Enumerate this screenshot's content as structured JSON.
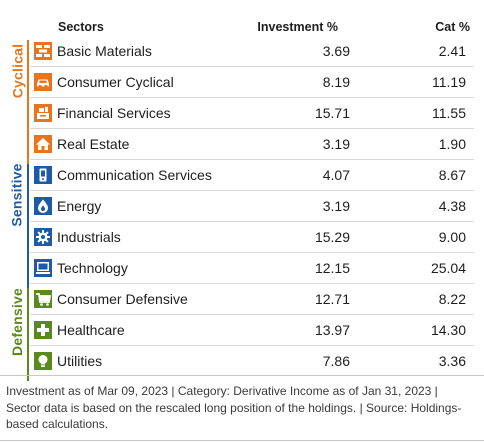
{
  "header": {
    "sectors": "Sectors",
    "investment": "Investment  %",
    "category": "Cat  %"
  },
  "groups": [
    {
      "label": "Cyclical",
      "color": "#e8741c"
    },
    {
      "label": "Sensitive",
      "color": "#1f5aa8"
    },
    {
      "label": "Defensive",
      "color": "#5a8a1e"
    }
  ],
  "rows": [
    {
      "name": "Basic Materials",
      "investment": "3.69",
      "category": "2.41",
      "icon": "bricks-icon",
      "color": "#e8741c"
    },
    {
      "name": "Consumer Cyclical",
      "investment": "8.19",
      "category": "11.19",
      "icon": "car-icon",
      "color": "#e8741c"
    },
    {
      "name": "Financial Services",
      "investment": "15.71",
      "category": "11.55",
      "icon": "cash-register-icon",
      "color": "#e8741c"
    },
    {
      "name": "Real Estate",
      "investment": "3.19",
      "category": "1.90",
      "icon": "house-icon",
      "color": "#e8741c"
    },
    {
      "name": "Communication Services",
      "investment": "4.07",
      "category": "8.67",
      "icon": "phone-icon",
      "color": "#1f5aa8"
    },
    {
      "name": "Energy",
      "investment": "3.19",
      "category": "4.38",
      "icon": "flame-icon",
      "color": "#1f5aa8"
    },
    {
      "name": "Industrials",
      "investment": "15.29",
      "category": "9.00",
      "icon": "gear-icon",
      "color": "#1f5aa8"
    },
    {
      "name": "Technology",
      "investment": "12.15",
      "category": "25.04",
      "icon": "monitor-icon",
      "color": "#1f5aa8"
    },
    {
      "name": "Consumer Defensive",
      "investment": "12.71",
      "category": "8.22",
      "icon": "cart-icon",
      "color": "#5a8a1e"
    },
    {
      "name": "Healthcare",
      "investment": "13.97",
      "category": "14.30",
      "icon": "medical-cross-icon",
      "color": "#5a8a1e"
    },
    {
      "name": "Utilities",
      "investment": "7.86",
      "category": "3.36",
      "icon": "lightbulb-icon",
      "color": "#5a8a1e"
    }
  ],
  "footnote": "Investment as of Mar 09, 2023 | Category: Derivative Income as of Jan 31, 2023 | Sector data is based on the rescaled long position of the holdings. | Source: Holdings-based calculations."
}
